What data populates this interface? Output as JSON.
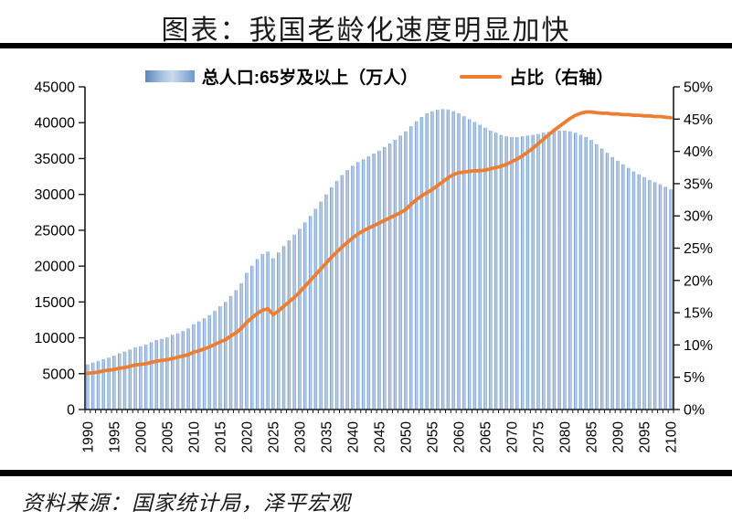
{
  "title": "图表：我国老龄化速度明显加快",
  "source": "资料来源：国家统计局，泽平宏观",
  "legend": {
    "bars": "总人口:65岁及以上（万人）",
    "line": "占比（右轴）"
  },
  "colors": {
    "bar_dark": "#5E86BC",
    "bar_mid": "#6E9ACD",
    "bar_light": "#C9DAEC",
    "line": "#ED7D31",
    "axis": "#1a1a1a",
    "text": "#000000",
    "rule": "#000000"
  },
  "chart_data": {
    "type": "bar",
    "title": "图表：我国老龄化速度明显加快",
    "xlabel": "",
    "ylabel_left": "总人口:65岁及以上（万人）",
    "ylabel_right": "占比（右轴）",
    "x_start": 1990,
    "x_end": 2100,
    "grid": false,
    "legend_position": "top",
    "left_axis": {
      "min": 0,
      "max": 45000,
      "ticks": [
        0,
        5000,
        10000,
        15000,
        20000,
        25000,
        30000,
        35000,
        40000,
        45000
      ]
    },
    "right_axis": {
      "min": 0,
      "max": 50,
      "ticks": [
        "0%",
        "5%",
        "10%",
        "15%",
        "20%",
        "25%",
        "30%",
        "35%",
        "40%",
        "45%",
        "50%"
      ]
    },
    "x_ticks": [
      1990,
      1995,
      2000,
      2005,
      2010,
      2015,
      2020,
      2025,
      2030,
      2035,
      2040,
      2045,
      2050,
      2055,
      2060,
      2065,
      2070,
      2075,
      2080,
      2085,
      2090,
      2095,
      2100
    ],
    "series": [
      {
        "name": "总人口:65岁及以上（万人）",
        "type": "bar",
        "axis": "left",
        "values": [
          6299,
          6538,
          6774,
          7009,
          7245,
          7510,
          7833,
          8085,
          8359,
          8679,
          8821,
          9062,
          9377,
          9692,
          9857,
          10055,
          10419,
          10636,
          10956,
          11307,
          11894,
          12288,
          12714,
          13161,
          13755,
          14386,
          15003,
          15831,
          16658,
          17603,
          19064,
          20056,
          20978,
          21676,
          22023,
          21100,
          21900,
          22800,
          23600,
          24400,
          25200,
          26100,
          27000,
          28000,
          29000,
          30000,
          31000,
          31900,
          32700,
          33400,
          34000,
          34500,
          34900,
          35300,
          35700,
          36100,
          36600,
          37100,
          37600,
          38200,
          38800,
          39500,
          40200,
          40800,
          41300,
          41600,
          41800,
          41900,
          41850,
          41600,
          41300,
          40900,
          40500,
          40100,
          39700,
          39300,
          38900,
          38600,
          38300,
          38100,
          38000,
          38000,
          38100,
          38200,
          38300,
          38400,
          38600,
          38700,
          38800,
          38900,
          38900,
          38800,
          38600,
          38300,
          38000,
          37600,
          37000,
          36400,
          35800,
          35200,
          34700,
          34200,
          33700,
          33200,
          32800,
          32400,
          32000,
          31700,
          31400,
          31050,
          30700
        ]
      },
      {
        "name": "占比（右轴）",
        "type": "line",
        "axis": "right",
        "values": [
          5.6,
          5.7,
          5.8,
          6.0,
          6.1,
          6.2,
          6.4,
          6.5,
          6.7,
          6.9,
          7.0,
          7.1,
          7.3,
          7.5,
          7.6,
          7.7,
          7.9,
          8.1,
          8.3,
          8.5,
          8.9,
          9.1,
          9.4,
          9.7,
          10.1,
          10.5,
          10.8,
          11.4,
          11.9,
          12.6,
          13.5,
          14.2,
          14.9,
          15.4,
          15.6,
          14.7,
          15.3,
          16.0,
          16.7,
          17.4,
          18.2,
          19.1,
          20.0,
          20.9,
          21.8,
          22.7,
          23.6,
          24.4,
          25.2,
          25.9,
          26.6,
          27.2,
          27.7,
          28.1,
          28.5,
          28.9,
          29.3,
          29.7,
          30.1,
          30.5,
          31.0,
          31.8,
          32.5,
          33.1,
          33.6,
          34.1,
          34.7,
          35.3,
          35.9,
          36.4,
          36.7,
          36.8,
          36.9,
          37.0,
          37.0,
          37.1,
          37.3,
          37.5,
          37.7,
          38.0,
          38.4,
          38.8,
          39.3,
          39.9,
          40.5,
          41.2,
          41.9,
          42.6,
          43.3,
          43.9,
          44.5,
          45.1,
          45.6,
          45.9,
          46.1,
          46.1,
          46.0,
          45.9,
          45.9,
          45.8,
          45.8,
          45.7,
          45.7,
          45.6,
          45.6,
          45.5,
          45.5,
          45.4,
          45.4,
          45.3,
          45.2
        ]
      }
    ]
  }
}
